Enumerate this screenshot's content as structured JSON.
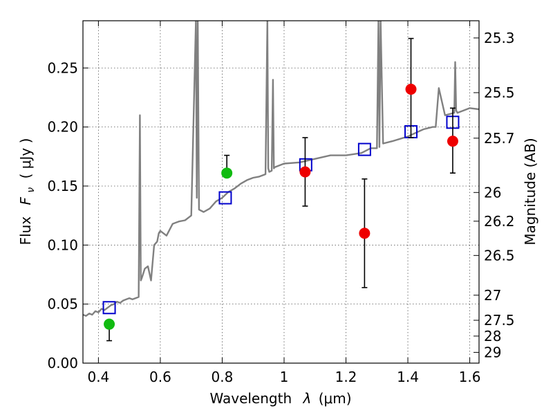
{
  "chart_data": {
    "type": "scatter",
    "xlabel_text": "Wavelength",
    "xlabel_symbol": "λ",
    "xlabel_unit": "(μm)",
    "ylabel_text": "Flux",
    "ylabel_symbol": "F",
    "ylabel_subscript": "ν",
    "ylabel_unit": "( μJy )",
    "ylabel_right": "Magnitude (AB)",
    "xlim": [
      0.35,
      1.63
    ],
    "ylim": [
      0.0,
      0.29
    ],
    "grid": true,
    "x_ticks": [
      {
        "value": 0.4,
        "label": "0.4"
      },
      {
        "value": 0.6,
        "label": "0.6"
      },
      {
        "value": 0.8,
        "label": "0.8"
      },
      {
        "value": 1.0,
        "label": "1"
      },
      {
        "value": 1.2,
        "label": "1.2"
      },
      {
        "value": 1.4,
        "label": "1.4"
      },
      {
        "value": 1.6,
        "label": "1.6"
      }
    ],
    "y_ticks": [
      {
        "value": 0.0,
        "label": "0.00"
      },
      {
        "value": 0.05,
        "label": "0.05"
      },
      {
        "value": 0.1,
        "label": "0.10"
      },
      {
        "value": 0.15,
        "label": "0.15"
      },
      {
        "value": 0.2,
        "label": "0.20"
      },
      {
        "value": 0.25,
        "label": "0.25"
      }
    ],
    "right_ticks": [
      {
        "mag": 25.3,
        "label": "25.3"
      },
      {
        "mag": 25.5,
        "label": "25.5"
      },
      {
        "mag": 25.7,
        "label": "25.7"
      },
      {
        "mag": 26.0,
        "label": "26"
      },
      {
        "mag": 26.2,
        "label": "26.2"
      },
      {
        "mag": 26.5,
        "label": "26.5"
      },
      {
        "mag": 27.0,
        "label": "27"
      },
      {
        "mag": 27.5,
        "label": "27.5"
      },
      {
        "mag": 28.0,
        "label": "28"
      },
      {
        "mag": 29.0,
        "label": "29"
      }
    ],
    "colors": {
      "spectrum": "#808080",
      "model": "#0000cc",
      "detection_green": "#11bb11",
      "detection_red": "#ee0000",
      "errorbar": "#000000",
      "grid": "#555555"
    },
    "spectrum": {
      "x": [
        0.35,
        0.36,
        0.37,
        0.38,
        0.39,
        0.4,
        0.41,
        0.42,
        0.43,
        0.44,
        0.45,
        0.46,
        0.47,
        0.48,
        0.49,
        0.5,
        0.51,
        0.52,
        0.53,
        0.534,
        0.537,
        0.54,
        0.55,
        0.56,
        0.57,
        0.58,
        0.59,
        0.595,
        0.6,
        0.62,
        0.64,
        0.66,
        0.68,
        0.7,
        0.715,
        0.718,
        0.721,
        0.725,
        0.74,
        0.76,
        0.78,
        0.8,
        0.82,
        0.84,
        0.86,
        0.88,
        0.9,
        0.92,
        0.94,
        0.946,
        0.949,
        0.952,
        0.96,
        0.964,
        0.967,
        0.97,
        1.0,
        1.05,
        1.1,
        1.15,
        1.2,
        1.25,
        1.28,
        1.3,
        1.305,
        1.308,
        1.312,
        1.32,
        1.35,
        1.4,
        1.45,
        1.48,
        1.49,
        1.5,
        1.52,
        1.55,
        1.553,
        1.556,
        1.56,
        1.58,
        1.6,
        1.63
      ],
      "y": [
        0.041,
        0.04,
        0.042,
        0.041,
        0.044,
        0.043,
        0.046,
        0.045,
        0.047,
        0.049,
        0.05,
        0.052,
        0.051,
        0.053,
        0.054,
        0.055,
        0.054,
        0.055,
        0.056,
        0.21,
        0.07,
        0.072,
        0.08,
        0.082,
        0.07,
        0.1,
        0.103,
        0.11,
        0.112,
        0.108,
        0.118,
        0.12,
        0.121,
        0.125,
        0.29,
        0.14,
        0.29,
        0.13,
        0.128,
        0.131,
        0.137,
        0.14,
        0.145,
        0.148,
        0.152,
        0.155,
        0.157,
        0.158,
        0.16,
        0.29,
        0.165,
        0.162,
        0.163,
        0.24,
        0.165,
        0.166,
        0.169,
        0.17,
        0.173,
        0.176,
        0.176,
        0.178,
        0.182,
        0.182,
        0.29,
        0.183,
        0.29,
        0.186,
        0.188,
        0.192,
        0.198,
        0.2,
        0.2,
        0.233,
        0.21,
        0.212,
        0.255,
        0.214,
        0.212,
        0.214,
        0.216,
        0.215
      ]
    },
    "model_points": {
      "x": [
        0.435,
        0.81,
        1.07,
        1.26,
        1.41,
        1.545
      ],
      "y": [
        0.047,
        0.14,
        0.168,
        0.181,
        0.196,
        0.204
      ]
    },
    "detections": [
      {
        "x": 0.435,
        "y": 0.033,
        "yerr_low": 0.019,
        "yerr_high": 0.033,
        "color": "green"
      },
      {
        "x": 0.815,
        "y": 0.161,
        "yerr_low": 0.161,
        "yerr_high": 0.176,
        "color": "green"
      },
      {
        "x": 1.068,
        "y": 0.162,
        "yerr_low": 0.133,
        "yerr_high": 0.191,
        "color": "red"
      },
      {
        "x": 1.26,
        "y": 0.11,
        "yerr_low": 0.064,
        "yerr_high": 0.156,
        "color": "red"
      },
      {
        "x": 1.41,
        "y": 0.232,
        "yerr_low": 0.191,
        "yerr_high": 0.275,
        "color": "red"
      },
      {
        "x": 1.545,
        "y": 0.188,
        "yerr_low": 0.161,
        "yerr_high": 0.216,
        "color": "red"
      }
    ]
  }
}
